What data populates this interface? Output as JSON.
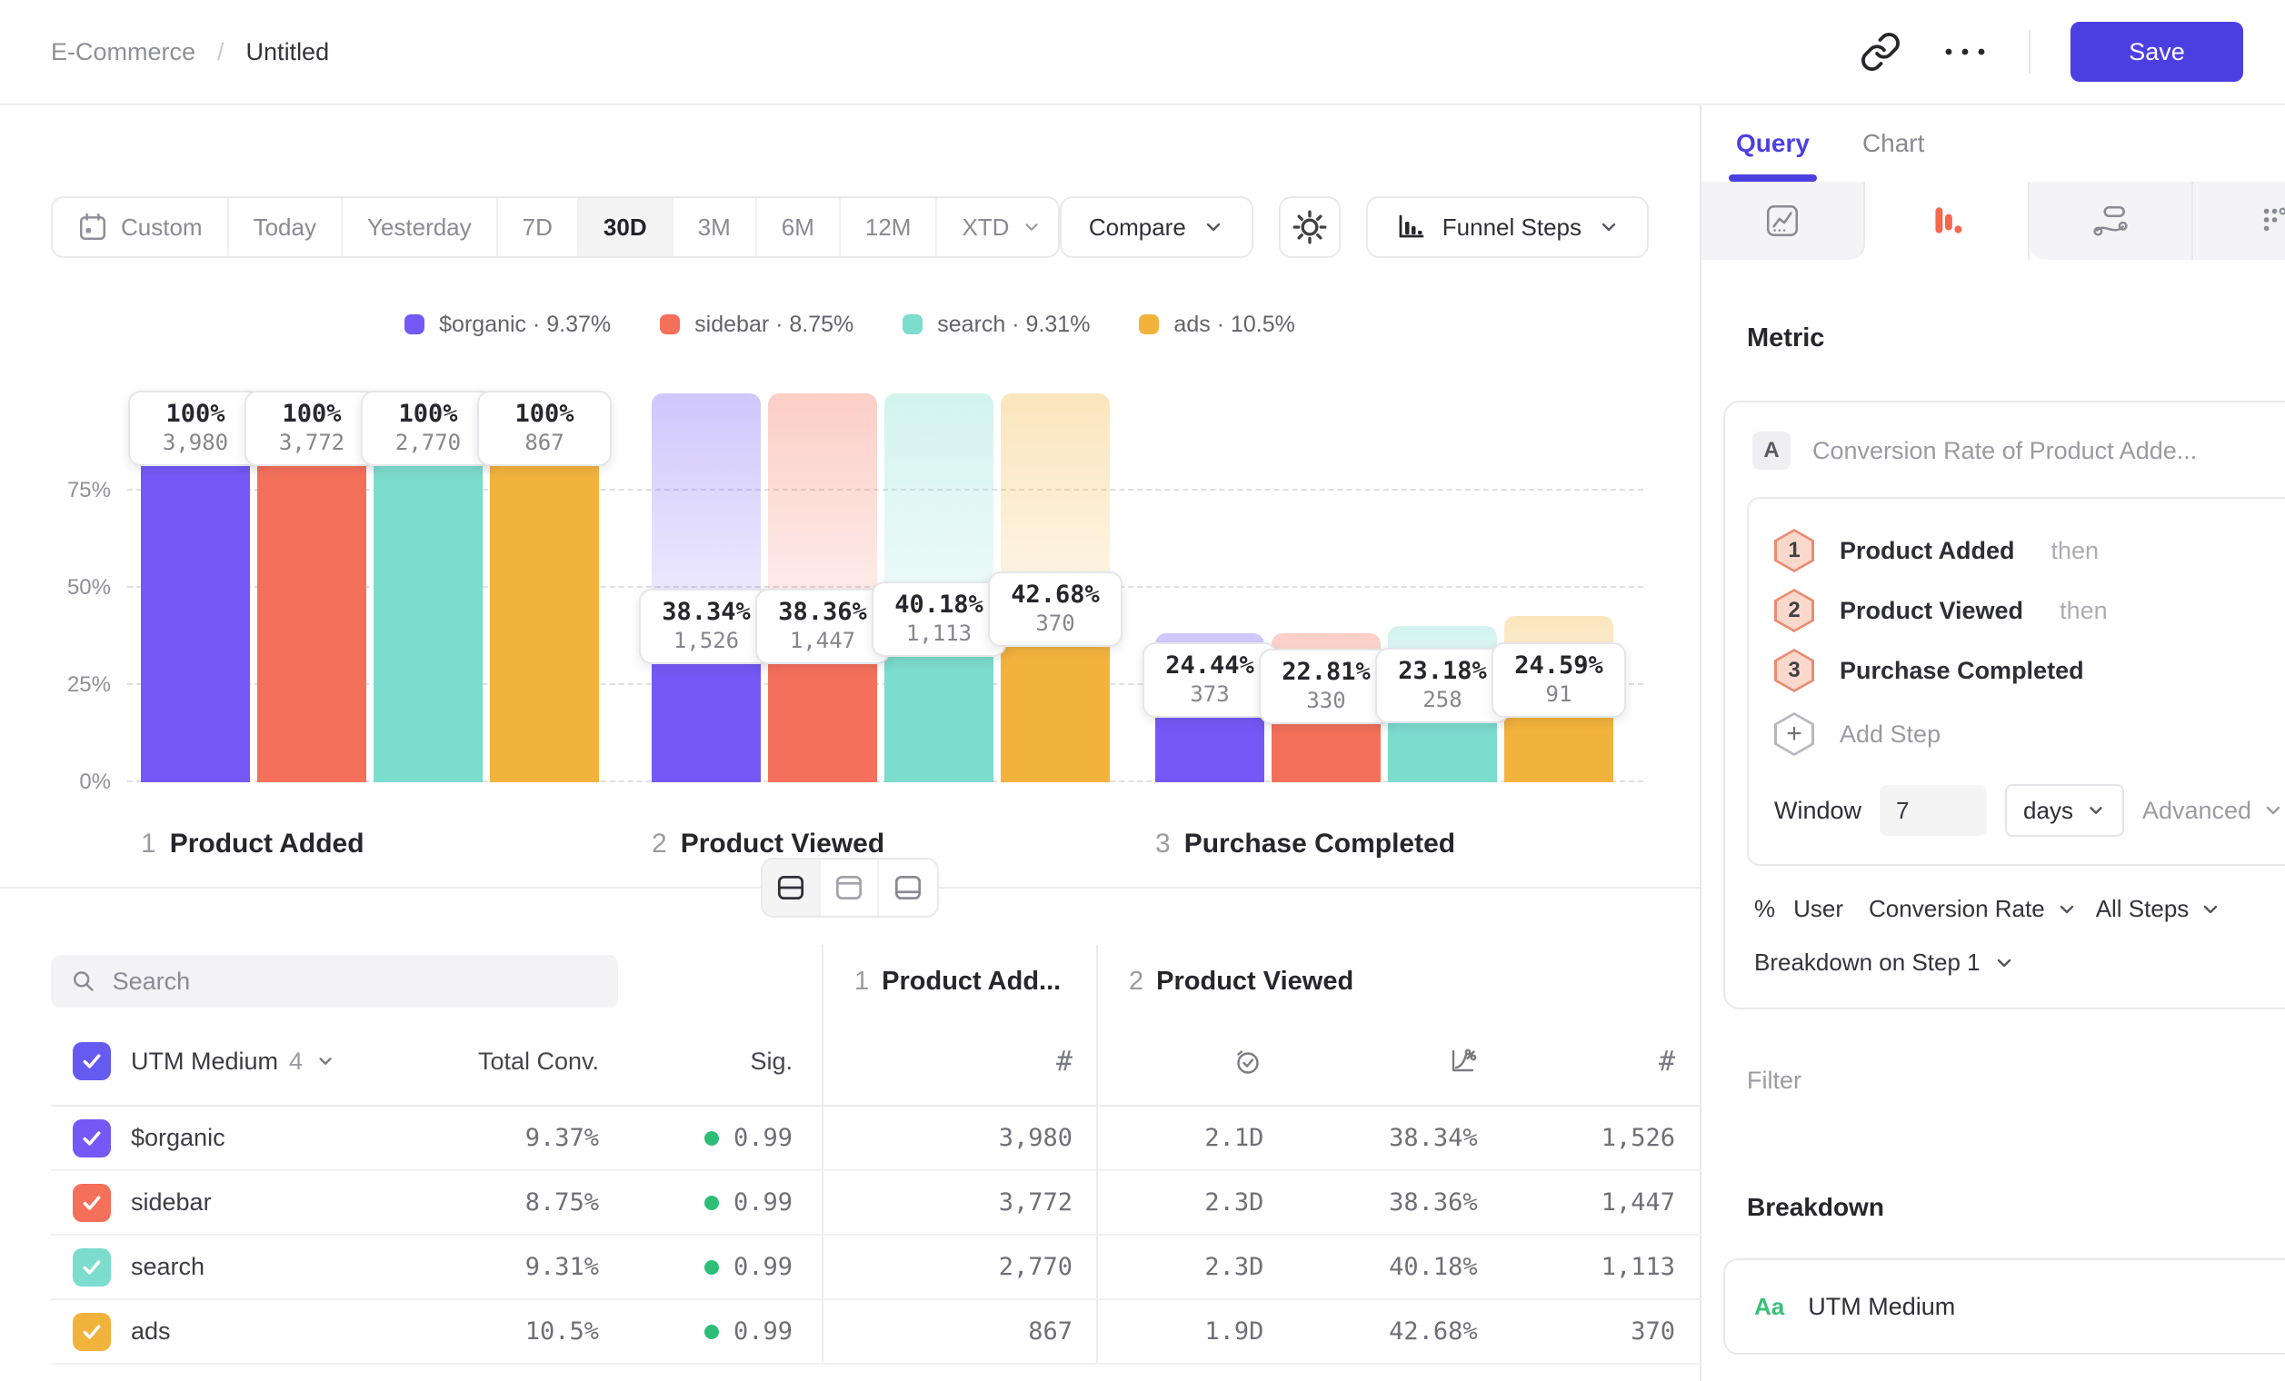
{
  "app": {
    "accent_color": "#4C3FE2"
  },
  "topbar": {
    "breadcrumb": {
      "root": "E-Commerce",
      "separator": "/",
      "current": "Untitled"
    },
    "save_label": "Save"
  },
  "toolbar": {
    "ranges": [
      "Custom",
      "Today",
      "Yesterday",
      "7D",
      "30D",
      "3M",
      "6M",
      "12M",
      "XTD"
    ],
    "active_range": "30D",
    "range_with_calendar": "Custom",
    "range_with_dropdown": "XTD",
    "compare_label": "Compare",
    "chart_type_label": "Funnel Steps"
  },
  "legend": {
    "separator": "·",
    "items": [
      {
        "label": "$organic",
        "value": "9.37%",
        "color": "#7459F6"
      },
      {
        "label": "sidebar",
        "value": "8.75%",
        "color": "#F5705B"
      },
      {
        "label": "search",
        "value": "9.31%",
        "color": "#7CDCCE"
      },
      {
        "label": "ads",
        "value": "10.5%",
        "color": "#F2B33D"
      }
    ]
  },
  "chart_data": {
    "type": "bar",
    "subtype": "funnel-steps",
    "categories": [
      "Product Added",
      "Product Viewed",
      "Purchase Completed"
    ],
    "category_numbers": [
      "1",
      "2",
      "3"
    ],
    "yticks": [
      "0%",
      "25%",
      "50%",
      "75%"
    ],
    "ytick_values": [
      0,
      25,
      50,
      75
    ],
    "ylim": [
      0,
      100
    ],
    "grid": "dashed-horizontal",
    "legend_position": "top-center",
    "series": [
      {
        "name": "$organic",
        "color": "#7459F6",
        "pct": [
          100,
          38.34,
          24.44
        ],
        "counts": [
          3980,
          1526,
          373
        ],
        "overall_conversion": "9.37%"
      },
      {
        "name": "sidebar",
        "color": "#F5705B",
        "pct": [
          100,
          38.36,
          22.81
        ],
        "counts": [
          3772,
          1447,
          330
        ],
        "overall_conversion": "8.75%"
      },
      {
        "name": "search",
        "color": "#7CDCCE",
        "pct": [
          100,
          40.18,
          23.18
        ],
        "counts": [
          2770,
          1113,
          258
        ],
        "overall_conversion": "9.31%"
      },
      {
        "name": "ads",
        "color": "#F2B33D",
        "pct": [
          100,
          42.68,
          24.59
        ],
        "counts": [
          867,
          370,
          91
        ],
        "overall_conversion": "10.5%"
      }
    ]
  },
  "table": {
    "search_placeholder": "Search",
    "group": {
      "name": "UTM Medium",
      "count": "4"
    },
    "columns": {
      "total": "Total Conv.",
      "sig": "Sig."
    },
    "step_columns": [
      {
        "num": "1",
        "label": "Product Add..."
      },
      {
        "num": "2",
        "label": "Product Viewed"
      }
    ],
    "sig_dot_color": "#2EBE76",
    "rows": [
      {
        "label": "$organic",
        "color": "#7459F6",
        "total_conv": "9.37%",
        "sig": "0.99",
        "step1_count": "3,980",
        "avg_time": "2.1D",
        "conv_pct": "38.34%",
        "step2_count": "1,526"
      },
      {
        "label": "sidebar",
        "color": "#F5705B",
        "total_conv": "8.75%",
        "sig": "0.99",
        "step1_count": "3,772",
        "avg_time": "2.3D",
        "conv_pct": "38.36%",
        "step2_count": "1,447"
      },
      {
        "label": "search",
        "color": "#7CDCCE",
        "total_conv": "9.31%",
        "sig": "0.99",
        "step1_count": "2,770",
        "avg_time": "2.3D",
        "conv_pct": "40.18%",
        "step2_count": "1,113"
      },
      {
        "label": "ads",
        "color": "#F2B33D",
        "total_conv": "10.5%",
        "sig": "0.99",
        "step1_count": "867",
        "avg_time": "1.9D",
        "conv_pct": "42.68%",
        "step2_count": "370"
      }
    ]
  },
  "panel": {
    "tabs": [
      "Query",
      "Chart"
    ],
    "active_tab": "Query",
    "metric_heading": "Metric",
    "metric": {
      "badge": "A",
      "title": "Conversion Rate of Product Adde...",
      "steps": [
        {
          "num": "1",
          "label": "Product Added",
          "suffix": "then"
        },
        {
          "num": "2",
          "label": "Product Viewed",
          "suffix": "then"
        },
        {
          "num": "3",
          "label": "Purchase Completed",
          "suffix": ""
        }
      ],
      "add_step_label": "Add Step",
      "window_label": "Window",
      "window_value": "7",
      "window_unit": "days",
      "advanced_label": "Advanced",
      "measure": {
        "symbol": "%",
        "entity": "User",
        "metric": "Conversion Rate",
        "scope": "All Steps"
      },
      "breakdown_on": "Breakdown on Step 1"
    },
    "filter_heading": "Filter",
    "breakdown_heading": "Breakdown",
    "breakdown_item": {
      "badge": "Aa",
      "badge_color": "#3BBF79",
      "label": "UTM Medium"
    }
  }
}
